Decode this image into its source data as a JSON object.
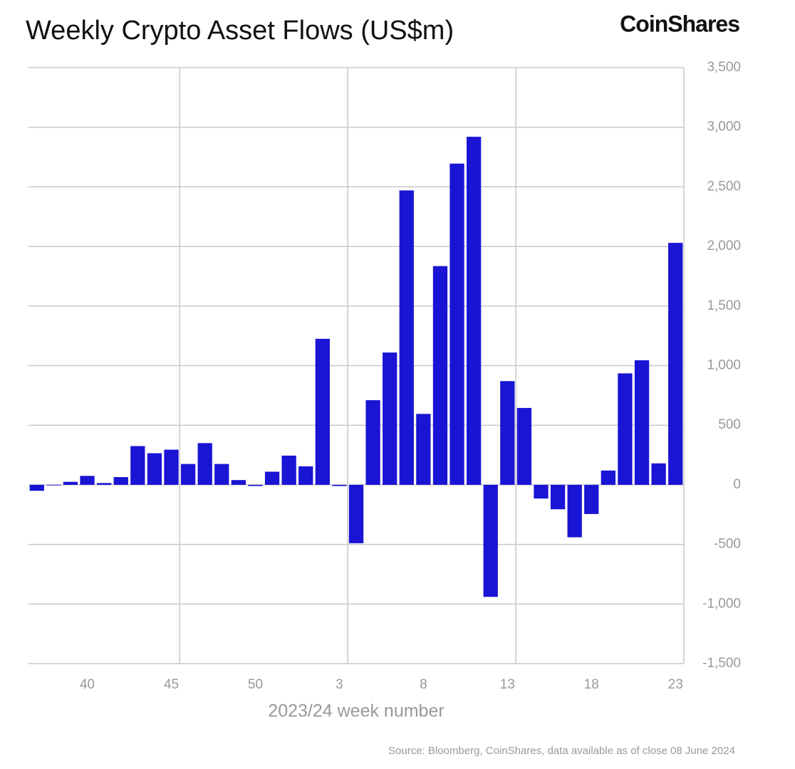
{
  "chart_data": {
    "type": "bar",
    "title": "Weekly Crypto Asset Flows (US$m)",
    "brand": "CoinShares",
    "x_label": "2023/24 week number",
    "source": "Source: Bloomberg, CoinShares, data available as of close 08 June 2024",
    "categories": [
      null,
      null,
      null,
      "40",
      null,
      null,
      null,
      null,
      "45",
      null,
      null,
      null,
      null,
      "50",
      null,
      null,
      null,
      null,
      "3",
      null,
      null,
      null,
      null,
      "8",
      null,
      null,
      null,
      null,
      "13",
      null,
      null,
      null,
      null,
      "18",
      null,
      null,
      null,
      null,
      "23"
    ],
    "values": [
      -50,
      -5,
      25,
      75,
      15,
      65,
      325,
      265,
      295,
      175,
      350,
      175,
      40,
      -10,
      110,
      245,
      155,
      1225,
      -10,
      -490,
      710,
      1110,
      2470,
      595,
      1835,
      2695,
      2920,
      -940,
      870,
      645,
      -115,
      -205,
      -440,
      -245,
      120,
      935,
      1045,
      180,
      2030
    ],
    "color": "#1a14d4",
    "ylim": [
      -1500,
      3500
    ],
    "yticks": [
      {
        "value": -1500,
        "label": "-1,500"
      },
      {
        "value": -1000,
        "label": "-1,000"
      },
      -500,
      0,
      500,
      {
        "value": 1000,
        "label": "1,000"
      },
      {
        "value": 1500,
        "label": "1,500"
      },
      {
        "value": 2000,
        "label": "2,000"
      },
      {
        "value": 2500,
        "label": "2,500"
      },
      {
        "value": 3000,
        "label": "3,000"
      },
      {
        "value": 3500,
        "label": "3,500"
      }
    ],
    "grid": true
  }
}
